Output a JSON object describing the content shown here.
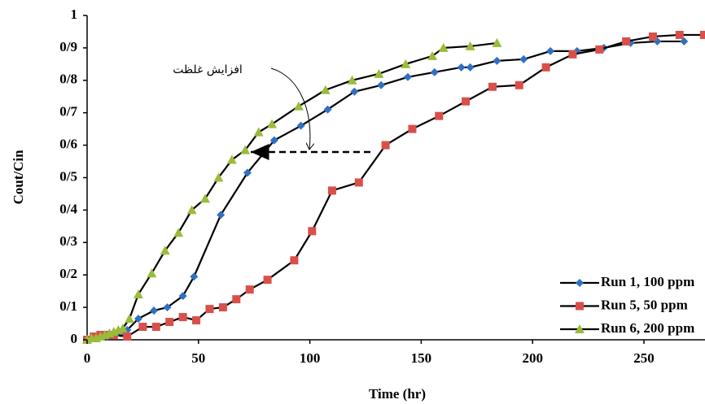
{
  "chart_data": {
    "type": "line",
    "x_label": "Time (hr)",
    "y_label": "Cout/Cin",
    "annotation": "افزایش غلظت",
    "xlim": [
      0,
      277
    ],
    "xticks": [
      0,
      50,
      100,
      150,
      200,
      250
    ],
    "ylim": [
      0,
      1
    ],
    "yticks": [
      0,
      {
        "value": 0.1,
        "label": "0/1"
      },
      {
        "value": 0.2,
        "label": "0/2"
      },
      {
        "value": 0.3,
        "label": "0/3"
      },
      {
        "value": 0.4,
        "label": "0/4"
      },
      {
        "value": 0.5,
        "label": "0/5"
      },
      {
        "value": 0.6,
        "label": "0/6"
      },
      {
        "value": 0.7,
        "label": "0/7"
      },
      {
        "value": 0.8,
        "label": "0/8"
      },
      {
        "value": 0.9,
        "label": "0/9"
      },
      1
    ],
    "legend": "lower right",
    "series": [
      {
        "name": "Run 1, 100 ppm",
        "color": "#2f6fc5",
        "marker": "diamond",
        "x": [
          0,
          3,
          6,
          9,
          12,
          15,
          18,
          23,
          30,
          36,
          43,
          48,
          60,
          72,
          84,
          96,
          108,
          120,
          132,
          144,
          156,
          168,
          172,
          184,
          196,
          208,
          220,
          232,
          244,
          256,
          268
        ],
        "values": [
          0,
          0.005,
          0.01,
          0.01,
          0.015,
          0.02,
          0.03,
          0.065,
          0.09,
          0.1,
          0.135,
          0.195,
          0.385,
          0.515,
          0.615,
          0.66,
          0.71,
          0.765,
          0.785,
          0.81,
          0.825,
          0.84,
          0.84,
          0.86,
          0.865,
          0.89,
          0.89,
          0.9,
          0.915,
          0.92,
          0.92
        ]
      },
      {
        "name": "Run 5, 50 ppm",
        "color": "#d9504a",
        "marker": "square",
        "x": [
          0,
          3,
          6,
          9,
          12,
          18,
          25,
          31,
          37,
          43,
          49,
          55,
          61,
          67,
          73,
          81,
          93,
          101,
          110,
          122,
          134,
          146,
          158,
          170,
          182,
          194,
          206,
          218,
          230,
          242,
          254,
          266,
          277
        ],
        "values": [
          0,
          0.01,
          0.015,
          0.015,
          0.015,
          0.01,
          0.04,
          0.04,
          0.055,
          0.07,
          0.06,
          0.095,
          0.1,
          0.125,
          0.155,
          0.185,
          0.245,
          0.335,
          0.46,
          0.485,
          0.6,
          0.65,
          0.69,
          0.735,
          0.78,
          0.785,
          0.84,
          0.88,
          0.895,
          0.92,
          0.935,
          0.94,
          0.94
        ]
      },
      {
        "name": "Run 6, 200 ppm",
        "color": "#9bbb3b",
        "marker": "triangle",
        "x": [
          0,
          2,
          4,
          6,
          8,
          10,
          12,
          14,
          16,
          19,
          23,
          29,
          35,
          41,
          47,
          53,
          59,
          65,
          71,
          77,
          83,
          95,
          107,
          119,
          131,
          143,
          155,
          160,
          172,
          184
        ],
        "values": [
          0,
          0.005,
          0.005,
          0.01,
          0.015,
          0.02,
          0.025,
          0.03,
          0.035,
          0.065,
          0.14,
          0.205,
          0.275,
          0.33,
          0.4,
          0.435,
          0.5,
          0.555,
          0.585,
          0.64,
          0.665,
          0.72,
          0.77,
          0.8,
          0.82,
          0.85,
          0.875,
          0.9,
          0.905,
          0.915
        ]
      }
    ]
  }
}
